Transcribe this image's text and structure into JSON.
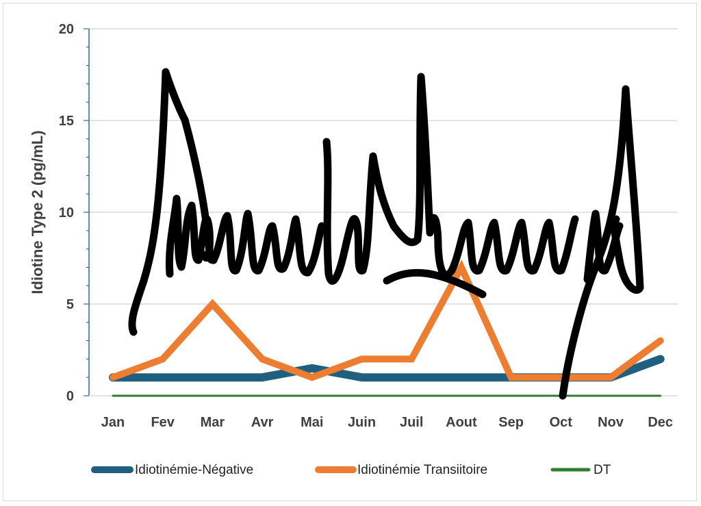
{
  "chart_data": {
    "type": "line",
    "title": "",
    "xlabel": "",
    "ylabel": "Idiotine Type 2 (pg/mL)",
    "categories": [
      "Jan",
      "Fev",
      "Mar",
      "Avr",
      "Mai",
      "Juin",
      "Juil",
      "Aout",
      "Sep",
      "Oct",
      "Nov",
      "Dec"
    ],
    "ylim": [
      0,
      20
    ],
    "yticks": [
      0,
      5,
      10,
      15,
      20
    ],
    "grid": true,
    "legend_position": "bottom",
    "series": [
      {
        "name": "Idiotinémie-Négative",
        "color": "#1f5f7f",
        "values": [
          1,
          1,
          1,
          1,
          1.5,
          1,
          1,
          1,
          1,
          1,
          1,
          2
        ]
      },
      {
        "name": "Idiotinémie Transiitoire",
        "color": "#ed7d31",
        "values": [
          1,
          2,
          5,
          2,
          1,
          2,
          2,
          7,
          1,
          1,
          1,
          3
        ]
      },
      {
        "name": "DT",
        "color": "#2e7d32",
        "values": [
          0,
          0,
          0,
          0,
          0,
          0,
          0,
          0,
          0,
          0,
          0,
          0
        ]
      }
    ]
  }
}
